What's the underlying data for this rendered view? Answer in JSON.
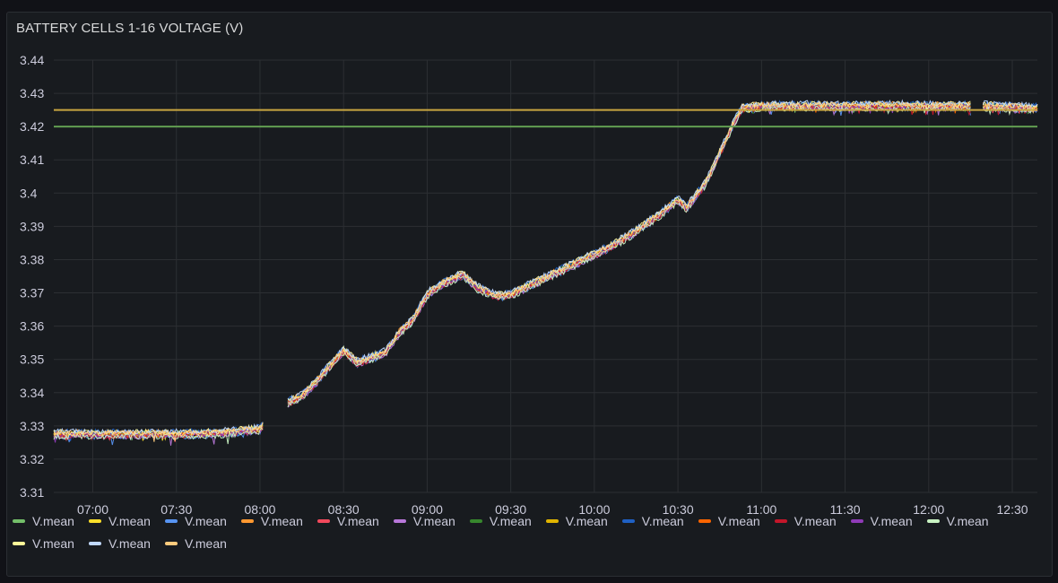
{
  "panel": {
    "title": "BATTERY CELLS 1-16 VOLTAGE (V)"
  },
  "chart_data": {
    "type": "line",
    "title": "BATTERY CELLS 1-16 VOLTAGE (V)",
    "xlabel": "",
    "ylabel": "",
    "x_ticks": [
      "07:00",
      "07:30",
      "08:00",
      "08:30",
      "09:00",
      "09:30",
      "10:00",
      "10:30",
      "11:00",
      "11:30",
      "12:00",
      "12:30"
    ],
    "x_range": [
      "06:46",
      "12:39"
    ],
    "y_ticks": [
      "3.44",
      "3.43",
      "3.42",
      "3.41",
      "3.4",
      "3.39",
      "3.38",
      "3.37",
      "3.36",
      "3.35",
      "3.34",
      "3.33",
      "3.32",
      "3.31"
    ],
    "ylim": [
      3.31,
      3.44
    ],
    "grid": true,
    "legend_position": "bottom",
    "thresholds": [
      {
        "value": 3.425,
        "color": "#c8a640"
      },
      {
        "value": 3.42,
        "color": "#629e51"
      }
    ],
    "mean_curve": [
      [
        "06:46",
        3.3275
      ],
      [
        "07:30",
        3.3275
      ],
      [
        "07:45",
        3.3278
      ],
      [
        "08:00",
        3.329
      ],
      [
        "08:01",
        3.33
      ],
      [
        "08:10",
        3.337
      ],
      [
        "08:15",
        3.339
      ],
      [
        "08:20",
        3.343
      ],
      [
        "08:25",
        3.348
      ],
      [
        "08:30",
        3.3525
      ],
      [
        "08:33",
        3.3505
      ],
      [
        "08:35",
        3.349
      ],
      [
        "08:40",
        3.3505
      ],
      [
        "08:45",
        3.352
      ],
      [
        "08:50",
        3.358
      ],
      [
        "08:55",
        3.362
      ],
      [
        "09:00",
        3.3695
      ],
      [
        "09:05",
        3.3725
      ],
      [
        "09:10",
        3.3745
      ],
      [
        "09:13",
        3.3755
      ],
      [
        "09:18",
        3.3715
      ],
      [
        "09:25",
        3.369
      ],
      [
        "09:30",
        3.3695
      ],
      [
        "09:35",
        3.3715
      ],
      [
        "09:45",
        3.3755
      ],
      [
        "09:55",
        3.3795
      ],
      [
        "10:05",
        3.3835
      ],
      [
        "10:15",
        3.3885
      ],
      [
        "10:25",
        3.3945
      ],
      [
        "10:30",
        3.398
      ],
      [
        "10:33",
        3.3955
      ],
      [
        "10:40",
        3.403
      ],
      [
        "10:45",
        3.412
      ],
      [
        "10:50",
        3.421
      ],
      [
        "10:53",
        3.4255
      ],
      [
        "11:00",
        3.4262
      ],
      [
        "11:30",
        3.4262
      ],
      [
        "12:00",
        3.4262
      ],
      [
        "12:15",
        3.4262
      ],
      [
        "12:17",
        null
      ],
      [
        "12:19",
        3.4262
      ],
      [
        "12:39",
        3.4255
      ]
    ],
    "series": [
      {
        "name": "V.mean",
        "color": "#73bf69"
      },
      {
        "name": "V.mean",
        "color": "#fade2a"
      },
      {
        "name": "V.mean",
        "color": "#5794f2"
      },
      {
        "name": "V.mean",
        "color": "#ff9830"
      },
      {
        "name": "V.mean",
        "color": "#f2495c"
      },
      {
        "name": "V.mean",
        "color": "#b877d9"
      },
      {
        "name": "V.mean",
        "color": "#37872d"
      },
      {
        "name": "V.mean",
        "color": "#e0b400"
      },
      {
        "name": "V.mean",
        "color": "#1f60c4"
      },
      {
        "name": "V.mean",
        "color": "#fa6400"
      },
      {
        "name": "V.mean",
        "color": "#c4162a"
      },
      {
        "name": "V.mean",
        "color": "#8f3bb8"
      },
      {
        "name": "V.mean",
        "color": "#c8f2c2"
      },
      {
        "name": "V.mean",
        "color": "#fff899"
      },
      {
        "name": "V.mean",
        "color": "#c0d8ff"
      },
      {
        "name": "V.mean",
        "color": "#ffcb7d"
      }
    ]
  }
}
